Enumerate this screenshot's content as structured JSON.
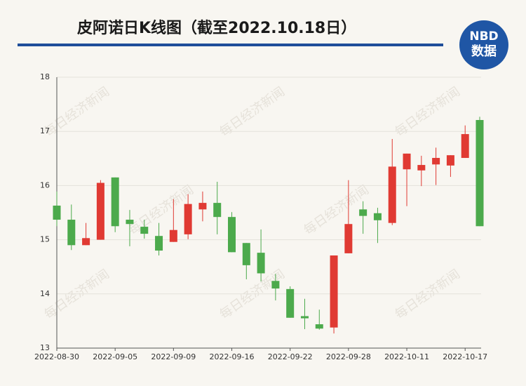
{
  "chart_data": {
    "type": "candlestick",
    "title": "皮阿诺日K线图（截至2022.10.18日）",
    "logo": [
      "NBD",
      "数据"
    ],
    "watermark": "每日经济新闻",
    "categories": [
      "2022-08-30",
      null,
      null,
      null,
      "2022-09-05",
      null,
      null,
      null,
      "2022-09-09",
      null,
      null,
      null,
      "2022-09-16",
      null,
      null,
      null,
      "2022-09-22",
      null,
      null,
      null,
      "2022-09-28",
      null,
      null,
      null,
      "2022-10-11",
      null,
      null,
      null,
      "2022-10-17",
      null
    ],
    "open": [
      15.63,
      15.37,
      14.9,
      15.0,
      16.15,
      15.37,
      15.24,
      15.07,
      14.96,
      15.1,
      15.56,
      15.68,
      15.42,
      14.94,
      14.76,
      14.24,
      14.09,
      13.59,
      13.44,
      13.38,
      14.75,
      15.56,
      15.49,
      15.31,
      16.3,
      16.28,
      16.39,
      16.37,
      16.51,
      17.21
    ],
    "high": [
      15.89,
      15.65,
      15.31,
      16.1,
      16.15,
      15.55,
      15.37,
      15.31,
      15.75,
      15.84,
      15.89,
      16.07,
      15.51,
      14.94,
      15.19,
      14.37,
      14.14,
      13.91,
      13.71,
      14.71,
      16.1,
      15.71,
      15.59,
      16.86,
      16.59,
      16.55,
      16.7,
      16.56,
      17.11,
      17.27
    ],
    "low": [
      15.25,
      14.81,
      14.9,
      15.0,
      15.14,
      14.88,
      15.02,
      14.71,
      14.96,
      15.01,
      15.34,
      15.1,
      14.77,
      14.27,
      14.23,
      13.88,
      13.56,
      13.35,
      13.34,
      13.27,
      14.75,
      15.11,
      14.94,
      15.27,
      15.62,
      15.99,
      16.01,
      16.16,
      16.51,
      15.25
    ],
    "close": [
      15.37,
      14.9,
      15.03,
      16.05,
      15.25,
      15.29,
      15.11,
      14.8,
      15.18,
      15.66,
      15.68,
      15.42,
      14.77,
      14.53,
      14.38,
      14.1,
      13.56,
      13.55,
      13.36,
      14.71,
      15.29,
      15.44,
      15.36,
      16.35,
      16.59,
      16.38,
      16.51,
      16.56,
      16.95,
      15.25
    ],
    "up_color": "#e03a33",
    "down_color": "#4caa4c",
    "ylim": [
      13,
      18
    ],
    "yticks": [
      13,
      14,
      15,
      16,
      17,
      18
    ],
    "grid": true
  }
}
